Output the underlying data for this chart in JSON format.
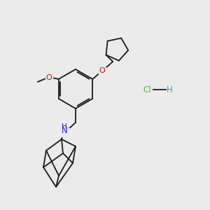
{
  "bg_color": "#ebebeb",
  "bond_color": "#1a1a1a",
  "O_color": "#cc1100",
  "N_color": "#2222cc",
  "Cl_color": "#44bb44",
  "H_color": "#22aaaa",
  "methoxy_label": "O",
  "oxy_label": "O",
  "N_label": "N",
  "H_label": "H",
  "Cl_label": "Cl",
  "H2_label": "H"
}
